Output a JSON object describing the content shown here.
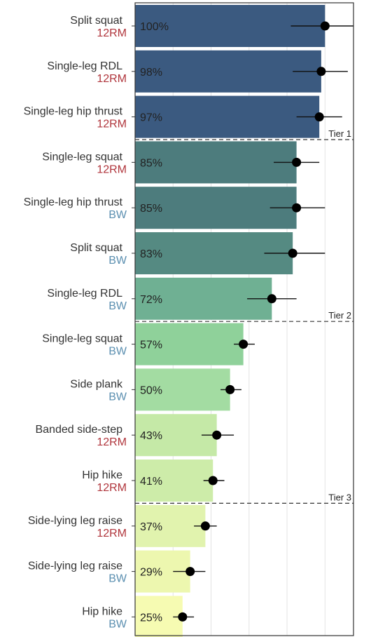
{
  "chart_data": {
    "type": "bar",
    "orientation": "horizontal",
    "xlim": [
      0,
      115
    ],
    "x_gridlines": [
      20,
      40,
      60,
      80,
      100
    ],
    "grid": true,
    "legend": "none",
    "load_colors": {
      "12RM": "#b0353c",
      "BW": "#5b8fb0"
    },
    "categories": [
      {
        "exercise": "Split squat",
        "load": "12RM",
        "value": 100,
        "label": "100%",
        "ci": [
          82,
          115
        ],
        "color": "#3b5a80"
      },
      {
        "exercise": "Single-leg RDL",
        "load": "12RM",
        "value": 98,
        "label": "98%",
        "ci": [
          83,
          112
        ],
        "color": "#3b5a80"
      },
      {
        "exercise": "Single-leg hip thrust",
        "load": "12RM",
        "value": 97,
        "label": "97%",
        "ci": [
          85,
          109
        ],
        "color": "#3b5a80"
      },
      {
        "exercise": "Single-leg squat",
        "load": "12RM",
        "value": 85,
        "label": "85%",
        "ci": [
          73,
          97
        ],
        "color": "#4d7c7d"
      },
      {
        "exercise": "Single-leg hip thrust",
        "load": "BW",
        "value": 85,
        "label": "85%",
        "ci": [
          71,
          100
        ],
        "color": "#4d7c7d"
      },
      {
        "exercise": "Split squat",
        "load": "BW",
        "value": 83,
        "label": "83%",
        "ci": [
          68,
          100
        ],
        "color": "#558a82"
      },
      {
        "exercise": "Single-leg RDL",
        "load": "BW",
        "value": 72,
        "label": "72%",
        "ci": [
          59,
          85
        ],
        "color": "#6fb093"
      },
      {
        "exercise": "Single-leg squat",
        "load": "BW",
        "value": 57,
        "label": "57%",
        "ci": [
          52,
          63
        ],
        "color": "#8fd19a"
      },
      {
        "exercise": "Side plank",
        "load": "BW",
        "value": 50,
        "label": "50%",
        "ci": [
          45,
          56
        ],
        "color": "#a3dca2"
      },
      {
        "exercise": "Banded side-step",
        "load": "12RM",
        "value": 43,
        "label": "43%",
        "ci": [
          35,
          52
        ],
        "color": "#c5e9a7"
      },
      {
        "exercise": "Hip hike",
        "load": "12RM",
        "value": 41,
        "label": "41%",
        "ci": [
          36,
          47
        ],
        "color": "#cdeca9"
      },
      {
        "exercise": "Side-lying leg raise",
        "load": "12RM",
        "value": 37,
        "label": "37%",
        "ci": [
          31,
          43
        ],
        "color": "#e1f3ae"
      },
      {
        "exercise": "Side-lying leg raise",
        "load": "BW",
        "value": 29,
        "label": "29%",
        "ci": [
          20,
          37
        ],
        "color": "#edf7af"
      },
      {
        "exercise": "Hip hike",
        "load": "BW",
        "value": 25,
        "label": "25%",
        "ci": [
          20,
          31
        ],
        "color": "#f6fbb2"
      }
    ],
    "tiers": [
      {
        "label": "Tier 1",
        "after_index": 2
      },
      {
        "label": "Tier 2",
        "after_index": 6
      },
      {
        "label": "Tier 3",
        "after_index": 10
      }
    ]
  }
}
